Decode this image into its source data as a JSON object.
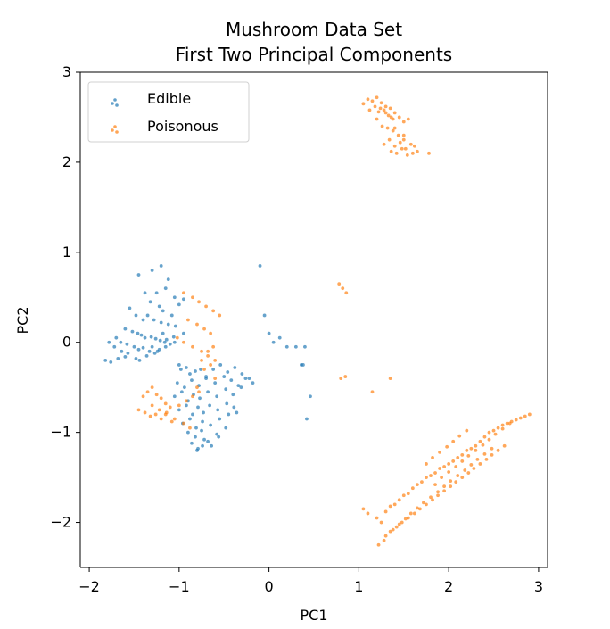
{
  "chart_data": {
    "type": "scatter",
    "title_line_1": "Mushroom Data Set",
    "title_line_2": "First Two Principal Components",
    "xlabel": "PC1",
    "ylabel": "PC2",
    "xlim": [
      -2.1,
      3.1
    ],
    "ylim": [
      -2.5,
      3.0
    ],
    "xticks": [
      -2,
      -1,
      0,
      1,
      2,
      3
    ],
    "yticks": [
      -2,
      -1,
      0,
      1,
      2,
      3
    ],
    "xtick_labels": [
      "−2",
      "−1",
      "0",
      "1",
      "2",
      "3"
    ],
    "ytick_labels": [
      "−2",
      "−1",
      "0",
      "1",
      "2",
      "3"
    ],
    "grid": false,
    "legend_position": "top-left",
    "colors": {
      "edible": "#1f77b4",
      "poisonous": "#ff7f0e",
      "axes": "#000000",
      "background": "#ffffff"
    },
    "series": [
      {
        "name": "Edible",
        "x": [
          -1.45,
          -1.3,
          -1.2,
          -1.12,
          -1.15,
          -1.25,
          -1.05,
          -0.95,
          -1.0,
          -1.38,
          -1.32,
          -1.22,
          -1.18,
          -1.08,
          -1.55,
          -1.48,
          -1.4,
          -1.35,
          -1.28,
          -1.2,
          -1.12,
          -1.04,
          -1.6,
          -1.52,
          -1.46,
          -1.42,
          -1.38,
          -1.31,
          -1.26,
          -1.21,
          -1.16,
          -1.1,
          -1.7,
          -1.65,
          -1.58,
          -1.5,
          -1.45,
          -1.4,
          -1.33,
          -1.27,
          -1.22,
          -1.14,
          -1.06,
          -1.78,
          -1.72,
          -1.64,
          -1.57,
          -1.48,
          -1.36,
          -1.24,
          -1.15,
          -1.05,
          -0.95,
          -1.82,
          -1.76,
          -1.68,
          -1.6,
          -1.44,
          -1.3,
          -1.18,
          -1.0,
          -0.98,
          -0.92,
          -0.88,
          -0.82,
          -0.76,
          -0.7,
          -0.62,
          -0.54,
          -0.46,
          -0.38,
          -0.3,
          -0.22,
          -1.02,
          -0.94,
          -0.86,
          -0.78,
          -0.7,
          -0.6,
          -0.5,
          -0.42,
          -0.34,
          -0.26,
          -0.18,
          -1.05,
          -0.97,
          -0.9,
          -0.84,
          -0.77,
          -0.68,
          -0.58,
          -0.48,
          -0.4,
          -0.31,
          -1.0,
          -0.92,
          -0.85,
          -0.79,
          -0.73,
          -0.66,
          -0.57,
          -0.47,
          -0.39,
          -0.96,
          -0.88,
          -0.81,
          -0.74,
          -0.65,
          -0.55,
          -0.45,
          -0.36,
          -0.9,
          -0.82,
          -0.75,
          -0.68,
          -0.58,
          -0.48,
          -0.86,
          -0.79,
          -0.72,
          -0.64,
          -0.56,
          -0.8,
          -0.74,
          -0.1,
          -0.05,
          0.0,
          0.05,
          0.12,
          0.2,
          0.3,
          0.38,
          0.4,
          0.42,
          0.46,
          0.36
        ],
        "y": [
          0.75,
          0.8,
          0.85,
          0.7,
          0.6,
          0.55,
          0.5,
          0.48,
          0.42,
          0.55,
          0.45,
          0.4,
          0.35,
          0.3,
          0.38,
          0.3,
          0.25,
          0.3,
          0.25,
          0.22,
          0.2,
          0.18,
          0.15,
          0.12,
          0.1,
          0.08,
          0.05,
          0.06,
          0.04,
          0.02,
          0.0,
          -0.02,
          0.05,
          0.0,
          -0.02,
          -0.05,
          -0.08,
          -0.06,
          -0.1,
          -0.12,
          -0.08,
          0.03,
          0.06,
          0.0,
          -0.05,
          -0.1,
          -0.12,
          -0.18,
          -0.15,
          -0.1,
          -0.05,
          0.0,
          0.1,
          -0.2,
          -0.22,
          -0.18,
          -0.16,
          -0.2,
          -0.05,
          0.1,
          -0.25,
          -0.3,
          -0.28,
          -0.35,
          -0.32,
          -0.3,
          -0.38,
          -0.3,
          -0.25,
          -0.33,
          -0.28,
          -0.35,
          -0.4,
          -0.45,
          -0.5,
          -0.42,
          -0.48,
          -0.4,
          -0.45,
          -0.38,
          -0.42,
          -0.48,
          -0.4,
          -0.45,
          -0.6,
          -0.55,
          -0.65,
          -0.58,
          -0.62,
          -0.55,
          -0.6,
          -0.52,
          -0.58,
          -0.5,
          -0.75,
          -0.7,
          -0.8,
          -0.72,
          -0.78,
          -0.7,
          -0.75,
          -0.68,
          -0.72,
          -0.9,
          -0.85,
          -0.95,
          -0.88,
          -0.92,
          -0.85,
          -0.8,
          -0.78,
          -1.0,
          -1.05,
          -0.98,
          -1.1,
          -1.02,
          -0.95,
          -1.12,
          -1.18,
          -1.08,
          -1.15,
          -1.05,
          -1.2,
          -1.15,
          0.85,
          0.3,
          0.1,
          0.0,
          0.05,
          -0.05,
          -0.05,
          -0.25,
          -0.05,
          -0.85,
          -0.6,
          -0.25
        ]
      },
      {
        "name": "Poisonous",
        "x": [
          1.05,
          1.1,
          1.15,
          1.2,
          1.25,
          1.3,
          1.35,
          1.4,
          1.12,
          1.18,
          1.22,
          1.28,
          1.33,
          1.38,
          1.45,
          1.5,
          1.55,
          1.2,
          1.26,
          1.32,
          1.38,
          1.44,
          1.5,
          1.28,
          1.34,
          1.4,
          1.46,
          1.52,
          1.58,
          1.36,
          1.42,
          1.48,
          1.54,
          1.6,
          1.65,
          1.4,
          1.5,
          1.62,
          1.78,
          1.24,
          1.3,
          1.36,
          -0.95,
          -0.85,
          -0.78,
          -0.7,
          -0.62,
          -0.55,
          -0.9,
          -0.8,
          -0.72,
          -0.65,
          -1.02,
          -0.95,
          -0.85,
          -0.75,
          -0.68,
          -0.6,
          -1.4,
          -1.35,
          -1.3,
          -1.25,
          -1.2,
          -1.15,
          -1.1,
          -1.45,
          -1.38,
          -1.32,
          -1.26,
          -1.2,
          -1.14,
          -1.08,
          -1.0,
          -0.92,
          -0.85,
          -0.78,
          -1.3,
          -1.22,
          -1.15,
          -1.05,
          -0.95,
          -0.88,
          -0.8,
          -0.72,
          -0.65,
          -0.6,
          -0.75,
          -0.68,
          -0.62,
          0.78,
          0.82,
          0.86,
          0.8,
          0.85,
          1.15,
          1.35,
          1.05,
          1.1,
          1.2,
          1.25,
          1.3,
          1.35,
          1.4,
          1.45,
          1.5,
          1.55,
          1.6,
          1.65,
          1.7,
          1.75,
          1.8,
          1.85,
          1.9,
          1.95,
          2.0,
          2.05,
          2.1,
          2.15,
          2.2,
          2.25,
          2.3,
          2.35,
          2.4,
          2.45,
          2.5,
          2.55,
          2.6,
          2.65,
          2.7,
          2.75,
          2.8,
          2.85,
          2.9,
          1.28,
          1.35,
          1.42,
          1.48,
          1.55,
          1.62,
          1.68,
          1.75,
          1.82,
          1.88,
          1.95,
          2.02,
          2.08,
          2.15,
          2.22,
          2.28,
          2.35,
          2.42,
          2.48,
          2.55,
          2.62,
          1.22,
          1.3,
          1.38,
          1.45,
          1.52,
          1.58,
          1.65,
          1.72,
          1.8,
          1.88,
          1.95,
          2.02,
          2.1,
          2.18,
          2.25,
          2.32,
          2.4,
          2.48,
          1.85,
          1.92,
          2.0,
          2.08,
          2.15,
          2.22,
          2.3,
          2.38,
          2.45,
          2.52,
          2.6,
          2.68,
          1.75,
          1.82,
          1.9,
          1.98,
          2.05,
          2.12,
          2.2
        ],
        "y": [
          2.65,
          2.7,
          2.68,
          2.72,
          2.66,
          2.62,
          2.6,
          2.55,
          2.58,
          2.62,
          2.56,
          2.58,
          2.52,
          2.48,
          2.5,
          2.45,
          2.48,
          2.48,
          2.4,
          2.38,
          2.35,
          2.3,
          2.25,
          2.2,
          2.25,
          2.18,
          2.22,
          2.15,
          2.2,
          2.12,
          2.1,
          2.15,
          2.08,
          2.1,
          2.12,
          2.38,
          2.3,
          2.18,
          2.1,
          2.6,
          2.55,
          2.5,
          0.55,
          0.5,
          0.45,
          0.4,
          0.35,
          0.3,
          0.25,
          0.2,
          0.15,
          0.1,
          0.05,
          0.0,
          -0.05,
          -0.1,
          -0.15,
          -0.2,
          -0.6,
          -0.55,
          -0.5,
          -0.58,
          -0.62,
          -0.68,
          -0.72,
          -0.75,
          -0.78,
          -0.82,
          -0.8,
          -0.85,
          -0.78,
          -0.88,
          -0.7,
          -0.65,
          -0.6,
          -0.55,
          -0.7,
          -0.75,
          -0.8,
          -0.85,
          -0.9,
          -0.95,
          -0.5,
          -0.3,
          -0.25,
          -0.4,
          -0.2,
          -0.1,
          -0.05,
          0.65,
          0.6,
          0.55,
          -0.4,
          -0.38,
          -0.55,
          -0.4,
          -1.85,
          -1.9,
          -1.95,
          -2.0,
          -1.88,
          -1.82,
          -1.8,
          -1.75,
          -1.7,
          -1.68,
          -1.62,
          -1.58,
          -1.55,
          -1.5,
          -1.48,
          -1.45,
          -1.4,
          -1.38,
          -1.35,
          -1.32,
          -1.28,
          -1.25,
          -1.2,
          -1.18,
          -1.15,
          -1.1,
          -1.05,
          -1.0,
          -0.98,
          -0.95,
          -0.92,
          -0.9,
          -0.88,
          -0.86,
          -0.84,
          -0.82,
          -0.8,
          -2.2,
          -2.1,
          -2.05,
          -2.0,
          -1.95,
          -1.9,
          -1.85,
          -1.8,
          -1.75,
          -1.7,
          -1.65,
          -1.6,
          -1.55,
          -1.5,
          -1.45,
          -1.4,
          -1.35,
          -1.3,
          -1.25,
          -1.2,
          -1.15,
          -2.25,
          -2.15,
          -2.08,
          -2.02,
          -1.96,
          -1.9,
          -1.84,
          -1.78,
          -1.72,
          -1.66,
          -1.6,
          -1.54,
          -1.48,
          -1.42,
          -1.36,
          -1.3,
          -1.24,
          -1.18,
          -1.58,
          -1.5,
          -1.44,
          -1.38,
          -1.32,
          -1.26,
          -1.2,
          -1.14,
          -1.08,
          -1.02,
          -0.96,
          -0.9,
          -1.35,
          -1.28,
          -1.22,
          -1.16,
          -1.1,
          -1.04,
          -0.98
        ]
      }
    ]
  }
}
